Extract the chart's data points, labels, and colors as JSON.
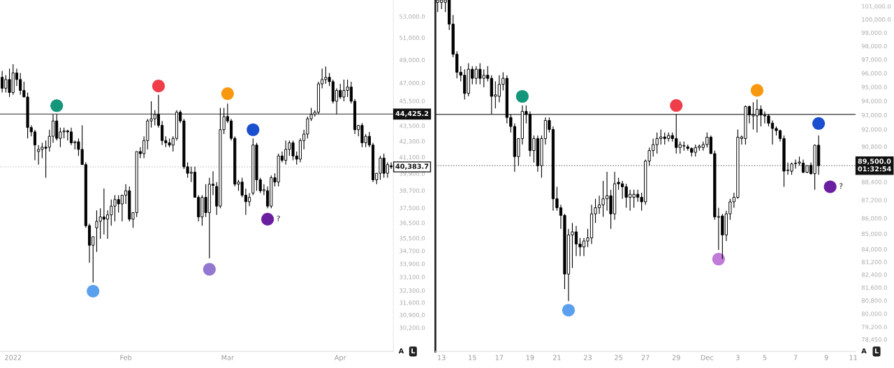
{
  "chart_data": [
    {
      "type": "candlestick",
      "log": true,
      "grid": false,
      "categories": [
        null,
        null,
        null,
        "2022",
        null,
        null,
        null,
        null,
        null,
        null,
        null,
        null,
        null,
        null,
        null,
        null,
        null,
        null,
        null,
        null,
        null,
        null,
        null,
        null,
        null,
        null,
        null,
        null,
        null,
        null,
        null,
        null,
        null,
        null,
        "Feb",
        null,
        null,
        null,
        null,
        null,
        null,
        null,
        null,
        null,
        null,
        null,
        null,
        null,
        null,
        null,
        null,
        null,
        null,
        null,
        null,
        null,
        null,
        null,
        null,
        null,
        null,
        null,
        "Mar",
        null,
        null,
        null,
        null,
        null,
        null,
        null,
        null,
        null,
        null,
        null,
        null,
        null,
        null,
        null,
        null,
        null,
        null,
        null,
        null,
        null,
        null,
        null,
        null,
        null,
        null,
        null,
        null,
        null,
        null,
        "Apr",
        null,
        null,
        null,
        null,
        null,
        null,
        null,
        null,
        null,
        null,
        null,
        null,
        null,
        null
      ],
      "ylim": [
        28930,
        54600
      ],
      "yticks": [
        {
          "value": 53000,
          "label": "53,000.0"
        },
        {
          "value": 51000,
          "label": "51,000.0"
        },
        {
          "value": 49000,
          "label": "49,000.0"
        },
        {
          "value": 47000,
          "label": "47,000.0"
        },
        {
          "value": 45500,
          "label": "45,500.0"
        },
        {
          "value": 43500,
          "label": "43,500.0"
        },
        {
          "value": 42300,
          "label": "42,300.0"
        },
        {
          "value": 41100,
          "label": "41,100.0"
        },
        {
          "value": 39900,
          "label": "39,900.0"
        },
        {
          "value": 38700,
          "label": "38,700.0"
        },
        {
          "value": 37500,
          "label": "37,500.0"
        },
        {
          "value": 36500,
          "label": "36,500.0"
        },
        {
          "value": 35500,
          "label": "35,500.0"
        },
        {
          "value": 34700,
          "label": "34,700.0"
        },
        {
          "value": 33900,
          "label": "33,900.0"
        },
        {
          "value": 33100,
          "label": "33,100.0"
        },
        {
          "value": 32300,
          "label": "32,300.0"
        },
        {
          "value": 31600,
          "label": "31,600.0"
        },
        {
          "value": 30900,
          "label": "30,900.0"
        },
        {
          "value": 30200,
          "label": "30,200.0"
        }
      ],
      "ohlc": [
        [
          47480,
          48040,
          46190,
          46550
        ],
        [
          46550,
          47670,
          46190,
          47290
        ],
        [
          47290,
          48230,
          45820,
          46190
        ],
        [
          46190,
          48620,
          46000,
          47860
        ],
        [
          47860,
          48230,
          46740,
          47290
        ],
        [
          47290,
          47860,
          46000,
          46370
        ],
        [
          46370,
          47110,
          45820,
          45820
        ],
        [
          45820,
          46190,
          42520,
          43360
        ],
        [
          43360,
          43530,
          42680,
          43020
        ],
        [
          43020,
          43190,
          40870,
          42010
        ],
        [
          41520,
          42010,
          40550,
          41680
        ],
        [
          41680,
          42180,
          41030,
          41850
        ],
        [
          41850,
          42350,
          39600,
          41770
        ],
        [
          41850,
          43190,
          41520,
          42680
        ],
        [
          42680,
          44400,
          42180,
          43880
        ],
        [
          43880,
          44400,
          42350,
          42520
        ],
        [
          42520,
          43360,
          41850,
          43020
        ],
        [
          43020,
          43360,
          42520,
          43100
        ],
        [
          43100,
          43190,
          42350,
          43020
        ],
        [
          43020,
          43360,
          42010,
          42180
        ],
        [
          42180,
          42350,
          41680,
          42260
        ],
        [
          42260,
          42520,
          41190,
          41680
        ],
        [
          41680,
          43530,
          40550,
          40550
        ],
        [
          40550,
          40710,
          36170,
          36310
        ],
        [
          36310,
          36450,
          33960,
          35050
        ],
        [
          35050,
          35600,
          32770,
          35600
        ],
        [
          36170,
          37330,
          34630,
          36600
        ],
        [
          36600,
          37470,
          35460,
          36890
        ],
        [
          36890,
          38830,
          35740,
          36740
        ],
        [
          36740,
          37330,
          35460,
          37030
        ],
        [
          37030,
          38070,
          36310,
          37620
        ],
        [
          37620,
          38370,
          36600,
          38070
        ],
        [
          38070,
          38370,
          37180,
          37770
        ],
        [
          37770,
          38370,
          36600,
          38370
        ],
        [
          38370,
          39140,
          37770,
          38680
        ],
        [
          38680,
          38980,
          36600,
          36740
        ],
        [
          36740,
          37180,
          36170,
          37180
        ],
        [
          37180,
          41520,
          36890,
          41520
        ],
        [
          41520,
          41850,
          41030,
          41360
        ],
        [
          41360,
          42680,
          41030,
          42350
        ],
        [
          42350,
          44050,
          41680,
          43880
        ],
        [
          43880,
          45470,
          43360,
          44050
        ],
        [
          44050,
          44750,
          43530,
          44400
        ],
        [
          44400,
          46000,
          43360,
          43530
        ],
        [
          43530,
          43880,
          42010,
          42350
        ],
        [
          42350,
          42680,
          41850,
          42180
        ],
        [
          42180,
          42520,
          41850,
          42010
        ],
        [
          42010,
          42680,
          41520,
          42520
        ],
        [
          42520,
          44750,
          42350,
          44580
        ],
        [
          44580,
          44750,
          43710,
          43880
        ],
        [
          43880,
          44050,
          40230,
          40390
        ],
        [
          40390,
          40710,
          39600,
          39920
        ],
        [
          39920,
          40390,
          39290,
          40000
        ],
        [
          40000,
          40390,
          38220,
          38220
        ],
        [
          38220,
          38370,
          36600,
          36890
        ],
        [
          36890,
          38370,
          36310,
          38220
        ],
        [
          38220,
          39140,
          36890,
          37180
        ],
        [
          37180,
          39600,
          34230,
          39140
        ],
        [
          39140,
          40070,
          38370,
          39060
        ],
        [
          38980,
          39290,
          37030,
          37620
        ],
        [
          37620,
          44930,
          37470,
          43190
        ],
        [
          43190,
          44930,
          42850,
          44230
        ],
        [
          44230,
          45290,
          43710,
          43880
        ],
        [
          43880,
          44050,
          42350,
          42520
        ],
        [
          42520,
          42680,
          38980,
          39140
        ],
        [
          39140,
          39450,
          38680,
          39290
        ],
        [
          39290,
          39600,
          38220,
          38370
        ],
        [
          38370,
          38830,
          37030,
          37920
        ],
        [
          37920,
          38520,
          37620,
          38220
        ],
        [
          38520,
          42520,
          38370,
          42010
        ],
        [
          42010,
          42180,
          38680,
          39450
        ],
        [
          39450,
          39600,
          38520,
          38680
        ],
        [
          38680,
          39140,
          38370,
          38750
        ],
        [
          38680,
          38980,
          37470,
          37620
        ],
        [
          37620,
          39760,
          37470,
          39600
        ],
        [
          39600,
          39920,
          38980,
          39290
        ],
        [
          39290,
          41360,
          38980,
          41190
        ],
        [
          41190,
          41520,
          40710,
          40870
        ],
        [
          40870,
          42350,
          40550,
          41680
        ],
        [
          41680,
          42350,
          41190,
          42180
        ],
        [
          42180,
          42350,
          40870,
          41190
        ],
        [
          41190,
          41520,
          40550,
          40950
        ],
        [
          40950,
          42520,
          40710,
          42350
        ],
        [
          42350,
          43190,
          41680,
          42850
        ],
        [
          42850,
          44230,
          42520,
          44050
        ],
        [
          44050,
          44930,
          43880,
          44400
        ],
        [
          44400,
          44750,
          44230,
          44580
        ],
        [
          44580,
          47110,
          44400,
          46920
        ],
        [
          46920,
          48230,
          46550,
          47290
        ],
        [
          47290,
          48420,
          46920,
          47480
        ],
        [
          47480,
          47860,
          46740,
          47110
        ],
        [
          47110,
          47290,
          45290,
          45470
        ],
        [
          45470,
          46550,
          44400,
          46370
        ],
        [
          46370,
          46920,
          45650,
          45820
        ],
        [
          45820,
          47290,
          45470,
          46370
        ],
        [
          46370,
          47290,
          45820,
          46650
        ],
        [
          46650,
          47110,
          45290,
          45470
        ],
        [
          45470,
          45650,
          42850,
          43190
        ],
        [
          43190,
          43530,
          42680,
          43530
        ],
        [
          43530,
          43710,
          41850,
          42180
        ],
        [
          42180,
          42850,
          41850,
          42680
        ],
        [
          42680,
          43020,
          41850,
          42010
        ],
        [
          42010,
          42180,
          39290,
          39450
        ],
        [
          39450,
          39920,
          39140,
          39920
        ],
        [
          39920,
          41190,
          39450,
          41030
        ],
        [
          41030,
          41360,
          39600,
          39920
        ],
        [
          39920,
          40710,
          39600,
          40550
        ],
        [
          40470,
          40710,
          40230,
          40380
        ]
      ],
      "series": [
        {
          "type": "scatter",
          "values": [
            null,
            null,
            null,
            null,
            null,
            null,
            null,
            null,
            null,
            null,
            null,
            null,
            null,
            null,
            null,
            45110,
            null,
            null,
            null,
            null,
            null,
            null,
            null,
            null,
            null,
            32260,
            null,
            null,
            null,
            null,
            null,
            null,
            null,
            null,
            null,
            null,
            null,
            null,
            null,
            null,
            null,
            null,
            null,
            46740,
            null,
            null,
            null,
            null,
            null,
            null,
            null,
            null,
            null,
            null,
            null,
            null,
            null,
            33560,
            null,
            null,
            null,
            null,
            46100,
            null,
            null,
            null,
            null,
            null,
            null,
            43190,
            null,
            null,
            null,
            36740,
            null,
            null,
            null,
            null,
            null,
            null,
            null,
            null,
            null,
            null,
            null,
            null,
            null,
            null,
            null,
            null,
            null,
            null,
            null,
            null,
            null,
            null,
            null,
            null,
            null,
            null,
            null,
            null,
            null,
            null,
            null,
            null,
            null,
            null
          ],
          "colors": [
            null,
            null,
            null,
            null,
            null,
            null,
            null,
            null,
            null,
            null,
            null,
            null,
            null,
            null,
            null,
            "#13967a",
            null,
            null,
            null,
            null,
            null,
            null,
            null,
            null,
            null,
            "#5aa0ee",
            null,
            null,
            null,
            null,
            null,
            null,
            null,
            null,
            null,
            null,
            null,
            null,
            null,
            null,
            null,
            null,
            null,
            "#ef3d4a",
            null,
            null,
            null,
            null,
            null,
            null,
            null,
            null,
            null,
            null,
            null,
            null,
            null,
            "#9477d0",
            null,
            null,
            null,
            null,
            "#f7980f",
            null,
            null,
            null,
            null,
            null,
            null,
            "#1a4fd0",
            null,
            null,
            null,
            "#6a1ea0",
            null,
            null,
            null,
            null,
            null,
            null,
            null,
            null,
            null,
            null,
            null,
            null,
            null,
            null,
            null,
            null,
            null,
            null,
            null,
            null,
            null,
            null,
            null,
            null,
            null,
            null,
            null,
            null,
            null,
            null,
            null,
            null,
            null,
            null
          ],
          "value_labels": [
            null,
            null,
            null,
            null,
            null,
            null,
            null,
            null,
            null,
            null,
            null,
            null,
            null,
            null,
            null,
            null,
            null,
            null,
            null,
            null,
            null,
            null,
            null,
            null,
            null,
            null,
            null,
            null,
            null,
            null,
            null,
            null,
            null,
            null,
            null,
            null,
            null,
            null,
            null,
            null,
            null,
            null,
            null,
            null,
            null,
            null,
            null,
            null,
            null,
            null,
            null,
            null,
            null,
            null,
            null,
            null,
            null,
            null,
            null,
            null,
            null,
            null,
            null,
            null,
            null,
            null,
            null,
            null,
            null,
            null,
            null,
            null,
            null,
            "?",
            null,
            null,
            null,
            null,
            null,
            null,
            null,
            null,
            null,
            null,
            null,
            null,
            null,
            null,
            null,
            null,
            null,
            null,
            null,
            null,
            null,
            null,
            null,
            null,
            null,
            null,
            null,
            null,
            null,
            null,
            null,
            null,
            null,
            null
          ]
        }
      ],
      "ref_lines": [
        {
          "axis": "y",
          "value": 44425.2,
          "label": "44,425.2",
          "color": "#555555",
          "line_style": "solid"
        },
        {
          "axis": "y",
          "value": 40383.7,
          "label": "40,383.7",
          "color": "#cccccc",
          "line_style": "dotted"
        }
      ],
      "annotations": [
        "A",
        "L"
      ]
    },
    {
      "type": "candlestick",
      "log": true,
      "grid": false,
      "categories": [
        null,
        "13",
        null,
        null,
        null,
        null,
        null,
        null,
        null,
        "15",
        null,
        null,
        null,
        null,
        null,
        null,
        "17",
        null,
        null,
        null,
        null,
        null,
        null,
        null,
        "19",
        null,
        null,
        null,
        null,
        null,
        null,
        "21",
        null,
        null,
        null,
        null,
        null,
        null,
        null,
        "23",
        null,
        null,
        null,
        null,
        null,
        null,
        null,
        "25",
        null,
        null,
        null,
        null,
        null,
        null,
        "27",
        null,
        null,
        null,
        null,
        null,
        null,
        null,
        "29",
        null,
        null,
        null,
        null,
        null,
        null,
        null,
        "Dec",
        null,
        null,
        null,
        null,
        null,
        null,
        null,
        "3",
        null,
        null,
        null,
        null,
        null,
        null,
        "5",
        null,
        null,
        null,
        null,
        null,
        null,
        null,
        "7",
        null,
        null,
        null,
        null,
        null,
        null,
        null,
        "9",
        null,
        null,
        null,
        null,
        null,
        null,
        "11"
      ],
      "ylim": [
        77740,
        101480
      ],
      "yticks": [
        {
          "value": 101000,
          "label": "101,000.0"
        },
        {
          "value": 100000,
          "label": "100,000.0"
        },
        {
          "value": 99000,
          "label": "99,000.0"
        },
        {
          "value": 98000,
          "label": "98,000.0"
        },
        {
          "value": 97000,
          "label": "97,000.0"
        },
        {
          "value": 96000,
          "label": "96,000.0"
        },
        {
          "value": 95000,
          "label": "95,000.0"
        },
        {
          "value": 94000,
          "label": "94,000.0"
        },
        {
          "value": 93000,
          "label": "93,000.0"
        },
        {
          "value": 92000,
          "label": "92,000.0"
        },
        {
          "value": 90800,
          "label": "90,800.0"
        },
        {
          "value": 88400,
          "label": "88,400.0"
        },
        {
          "value": 87200,
          "label": "87,200.0"
        },
        {
          "value": 86000,
          "label": "86,000.0"
        },
        {
          "value": 85000,
          "label": "85,000.0"
        },
        {
          "value": 84000,
          "label": "84,000.0"
        },
        {
          "value": 83200,
          "label": "83,200.0"
        },
        {
          "value": 82400,
          "label": "82,400.0"
        },
        {
          "value": 81600,
          "label": "81,600.0"
        },
        {
          "value": 80800,
          "label": "80,800.0"
        },
        {
          "value": 80000,
          "label": "80,000.0"
        },
        {
          "value": 79200,
          "label": "79,200.0"
        },
        {
          "value": 78450,
          "label": "78,450.0"
        }
      ],
      "ohlc": [
        [
          101300,
          101480,
          100560,
          101480
        ],
        [
          101300,
          101480,
          100790,
          101480
        ],
        [
          101300,
          101480,
          100560,
          101480
        ],
        [
          101480,
          101480,
          99190,
          99640
        ],
        [
          99640,
          100330,
          97170,
          97390
        ],
        [
          97390,
          97620,
          95630,
          96070
        ],
        [
          96070,
          96510,
          95410,
          95850
        ],
        [
          95850,
          96290,
          94110,
          94540
        ],
        [
          94540,
          96730,
          94330,
          96290
        ],
        [
          96290,
          96510,
          95190,
          95630
        ],
        [
          95630,
          96510,
          95190,
          96290
        ],
        [
          96290,
          96730,
          95190,
          95630
        ],
        [
          95630,
          96290,
          94980,
          95850
        ],
        [
          95850,
          96510,
          95410,
          95630
        ],
        [
          95630,
          95850,
          93050,
          94330
        ],
        [
          94330,
          95410,
          93470,
          94440
        ],
        [
          94330,
          95850,
          93900,
          95190
        ],
        [
          95190,
          96070,
          94760,
          95630
        ],
        [
          95630,
          95850,
          92410,
          92830
        ],
        [
          92830,
          93050,
          91780,
          92200
        ],
        [
          92200,
          92410,
          89090,
          90120
        ],
        [
          90120,
          91360,
          89500,
          91360
        ],
        [
          91360,
          93680,
          90940,
          93260
        ],
        [
          93260,
          93680,
          92410,
          93050
        ],
        [
          93050,
          93260,
          90120,
          90530
        ],
        [
          90530,
          91570,
          89710,
          91360
        ],
        [
          91360,
          91570,
          89090,
          89500
        ],
        [
          89500,
          91570,
          88690,
          91360
        ],
        [
          91360,
          92830,
          90940,
          92620
        ],
        [
          92620,
          92830,
          91780,
          91990
        ],
        [
          91990,
          92200,
          86490,
          87280
        ],
        [
          87280,
          88080,
          86490,
          86690
        ],
        [
          86690,
          86880,
          85310,
          86190
        ],
        [
          86190,
          86290,
          81500,
          82440
        ],
        [
          82440,
          85310,
          80760,
          84920
        ],
        [
          84920,
          85700,
          82820,
          85120
        ],
        [
          85120,
          85500,
          83570,
          84340
        ],
        [
          84340,
          84730,
          83570,
          84150
        ],
        [
          84150,
          84730,
          83570,
          84530
        ],
        [
          84530,
          85310,
          84150,
          84730
        ],
        [
          84730,
          86880,
          84340,
          86290
        ],
        [
          86290,
          87280,
          85700,
          86690
        ],
        [
          86690,
          87480,
          86290,
          86880
        ],
        [
          86880,
          88480,
          86090,
          87280
        ],
        [
          87280,
          89090,
          86490,
          87480
        ],
        [
          87480,
          87880,
          85310,
          86290
        ],
        [
          86290,
          89090,
          85900,
          88280
        ],
        [
          88380,
          88690,
          87880,
          88280
        ],
        [
          88280,
          88480,
          87280,
          88080
        ],
        [
          88080,
          88280,
          86690,
          87380
        ],
        [
          87380,
          87880,
          86490,
          87580
        ],
        [
          87380,
          87880,
          86690,
          87580
        ],
        [
          87580,
          87880,
          87080,
          87380
        ],
        [
          87380,
          87680,
          86490,
          87080
        ],
        [
          87080,
          89910,
          86880,
          89810
        ],
        [
          89810,
          90740,
          89500,
          90530
        ],
        [
          90530,
          91360,
          90120,
          90940
        ],
        [
          90940,
          91780,
          90320,
          91360
        ],
        [
          91360,
          91990,
          90940,
          91470
        ],
        [
          91470,
          91780,
          90940,
          91360
        ],
        [
          91360,
          91780,
          91150,
          91570
        ],
        [
          91570,
          91780,
          91150,
          91360
        ],
        [
          91360,
          93050,
          90320,
          90740
        ],
        [
          90740,
          91150,
          90320,
          90940
        ],
        [
          90840,
          91150,
          90530,
          90880
        ],
        [
          90790,
          90940,
          90530,
          90680
        ],
        [
          90680,
          90740,
          90120,
          90410
        ],
        [
          90410,
          90940,
          90120,
          90740
        ],
        [
          90740,
          90940,
          90530,
          90840
        ],
        [
          90740,
          91150,
          90530,
          90940
        ],
        [
          90940,
          91780,
          90740,
          91450
        ],
        [
          91450,
          91570,
          90320,
          90320
        ],
        [
          90320,
          90530,
          85900,
          86090
        ],
        [
          86070,
          86690,
          83960,
          86110
        ],
        [
          86150,
          86290,
          83380,
          84920
        ],
        [
          84920,
          86490,
          84530,
          86290
        ],
        [
          86290,
          87280,
          85900,
          87080
        ],
        [
          87080,
          87680,
          86690,
          87380
        ],
        [
          87380,
          91990,
          87280,
          91450
        ],
        [
          91360,
          91570,
          90940,
          91470
        ],
        [
          91360,
          93680,
          90940,
          93600
        ],
        [
          93600,
          93680,
          92410,
          93010
        ],
        [
          92940,
          93900,
          91990,
          93030
        ],
        [
          92940,
          94110,
          91780,
          93410
        ],
        [
          93410,
          93680,
          92200,
          93010
        ],
        [
          92990,
          93260,
          92410,
          92940
        ],
        [
          92940,
          93050,
          92200,
          92430
        ],
        [
          92430,
          92620,
          90940,
          92060
        ],
        [
          92060,
          92200,
          91570,
          91910
        ],
        [
          91910,
          91990,
          91150,
          91360
        ],
        [
          91360,
          91570,
          88080,
          89130
        ],
        [
          89170,
          89710,
          88890,
          89190
        ],
        [
          89130,
          89710,
          88890,
          89620
        ],
        [
          89640,
          89910,
          89300,
          89670
        ],
        [
          89670,
          90120,
          89500,
          89750
        ],
        [
          89670,
          89910,
          88990,
          89050
        ],
        [
          89050,
          89500,
          88990,
          89500
        ],
        [
          89520,
          89710,
          88890,
          88960
        ],
        [
          88960,
          90940,
          87880,
          90900
        ],
        [
          90900,
          91570,
          88890,
          89500
        ],
        null,
        null,
        null,
        null,
        null,
        null,
        null,
        null,
        null
      ],
      "series": [
        {
          "type": "scatter",
          "values": [
            null,
            null,
            null,
            null,
            null,
            null,
            null,
            null,
            null,
            null,
            null,
            null,
            null,
            null,
            null,
            null,
            null,
            null,
            null,
            null,
            null,
            null,
            94330,
            null,
            null,
            null,
            null,
            null,
            null,
            null,
            null,
            null,
            null,
            null,
            80210,
            null,
            null,
            null,
            null,
            null,
            null,
            null,
            null,
            null,
            null,
            null,
            null,
            null,
            null,
            null,
            null,
            null,
            null,
            null,
            null,
            null,
            null,
            null,
            null,
            null,
            null,
            null,
            93680,
            null,
            null,
            null,
            null,
            null,
            null,
            null,
            null,
            null,
            null,
            83380,
            null,
            null,
            null,
            null,
            null,
            null,
            null,
            null,
            null,
            94760,
            null,
            null,
            null,
            null,
            null,
            null,
            null,
            null,
            null,
            null,
            null,
            null,
            null,
            null,
            null,
            92410,
            null,
            null,
            88080,
            null,
            null,
            null,
            null,
            null,
            null
          ],
          "colors": [
            null,
            null,
            null,
            null,
            null,
            null,
            null,
            null,
            null,
            null,
            null,
            null,
            null,
            null,
            null,
            null,
            null,
            null,
            null,
            null,
            null,
            null,
            "#13967a",
            null,
            null,
            null,
            null,
            null,
            null,
            null,
            null,
            null,
            null,
            null,
            "#5aa0ee",
            null,
            null,
            null,
            null,
            null,
            null,
            null,
            null,
            null,
            null,
            null,
            null,
            null,
            null,
            null,
            null,
            null,
            null,
            null,
            null,
            null,
            null,
            null,
            null,
            null,
            null,
            null,
            "#ef3d4a",
            null,
            null,
            null,
            null,
            null,
            null,
            null,
            null,
            null,
            null,
            "#c07ad8",
            null,
            null,
            null,
            null,
            null,
            null,
            null,
            null,
            null,
            "#f7980f",
            null,
            null,
            null,
            null,
            null,
            null,
            null,
            null,
            null,
            null,
            null,
            null,
            null,
            null,
            null,
            "#1a4fd0",
            null,
            null,
            "#6a1ea0",
            null,
            null,
            null,
            null,
            null,
            null
          ],
          "value_labels": [
            null,
            null,
            null,
            null,
            null,
            null,
            null,
            null,
            null,
            null,
            null,
            null,
            null,
            null,
            null,
            null,
            null,
            null,
            null,
            null,
            null,
            null,
            null,
            null,
            null,
            null,
            null,
            null,
            null,
            null,
            null,
            null,
            null,
            null,
            null,
            null,
            null,
            null,
            null,
            null,
            null,
            null,
            null,
            null,
            null,
            null,
            null,
            null,
            null,
            null,
            null,
            null,
            null,
            null,
            null,
            null,
            null,
            null,
            null,
            null,
            null,
            null,
            null,
            null,
            null,
            null,
            null,
            null,
            null,
            null,
            null,
            null,
            null,
            null,
            null,
            null,
            null,
            null,
            null,
            null,
            null,
            null,
            null,
            null,
            null,
            null,
            null,
            null,
            null,
            null,
            null,
            null,
            null,
            null,
            null,
            null,
            null,
            null,
            null,
            null,
            null,
            null,
            "?",
            null,
            null,
            null,
            null,
            null,
            null
          ]
        }
      ],
      "ref_lines": [
        {
          "axis": "y",
          "value": 93050,
          "color": "#555555",
          "line_style": "solid"
        },
        {
          "axis": "y",
          "value": 89500,
          "label": "89,500.0\n01:32:54",
          "color": "#888888",
          "line_style": "dotted"
        }
      ],
      "annotations": [
        "A",
        "L"
      ]
    }
  ]
}
